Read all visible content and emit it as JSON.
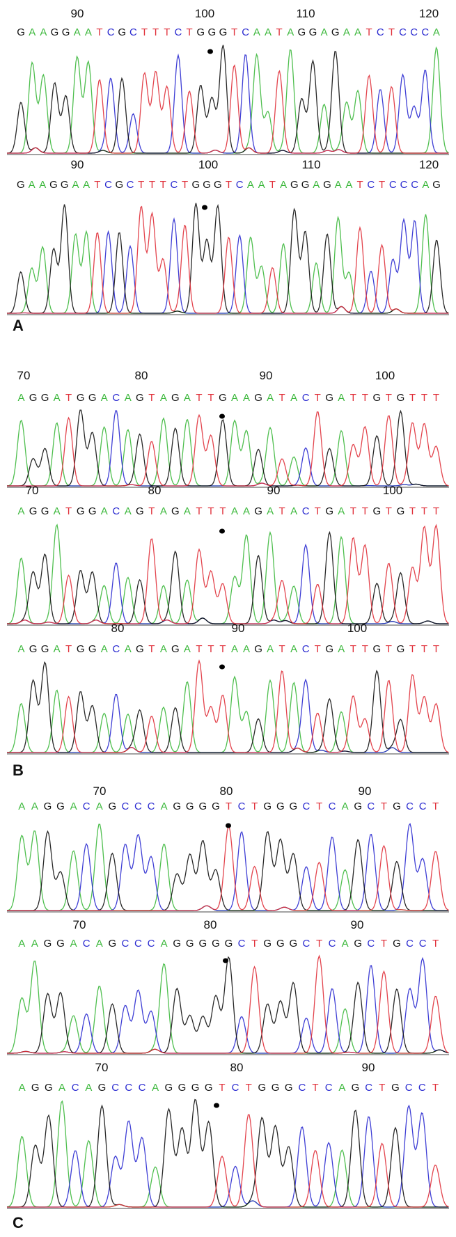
{
  "panels": [
    {
      "label": "A",
      "tracks": [
        {
          "positions": [
            90,
            100,
            110,
            120
          ],
          "sequence": "GAAGGAATCGCTTTCTGGGTCAATAGGAGAATCTCCCA"
        },
        {
          "positions": [
            90,
            100,
            110,
            120
          ],
          "sequence": "GAAGGAATCGCTTTCTGGGTCAATAGGAGAATCTCCCAG"
        }
      ]
    },
    {
      "label": "B",
      "tracks": [
        {
          "positions": [
            70,
            80,
            90,
            100
          ],
          "sequence": "AGGATGGACAGTAGATTGAAGATACTGATTGTGTTT"
        },
        {
          "positions": [
            70,
            80,
            90,
            100
          ],
          "sequence": "AGGATGGACAGTAGATTTAAGATACTGATTGTGTTT"
        },
        {
          "positions": [
            80,
            90,
            100
          ],
          "sequence": "AGGATGGACAGTAGATTTAAGATACTGATTGTGTTT"
        }
      ]
    },
    {
      "label": "C",
      "tracks": [
        {
          "positions": [
            70,
            80,
            90
          ],
          "sequence": "AAGGACAGCCCAGGGGTCTGGGCTCAGCTGCCT"
        },
        {
          "positions": [
            70,
            80,
            90
          ],
          "sequence": "AAGGACAGCCCAGGGGGCTGGGCTCAGCTGCCT"
        },
        {
          "positions": [
            70,
            80,
            90
          ],
          "sequence": "AGGACAGCCCAGGGGTCTGGGCTCAGCTGCCT"
        }
      ]
    }
  ]
}
